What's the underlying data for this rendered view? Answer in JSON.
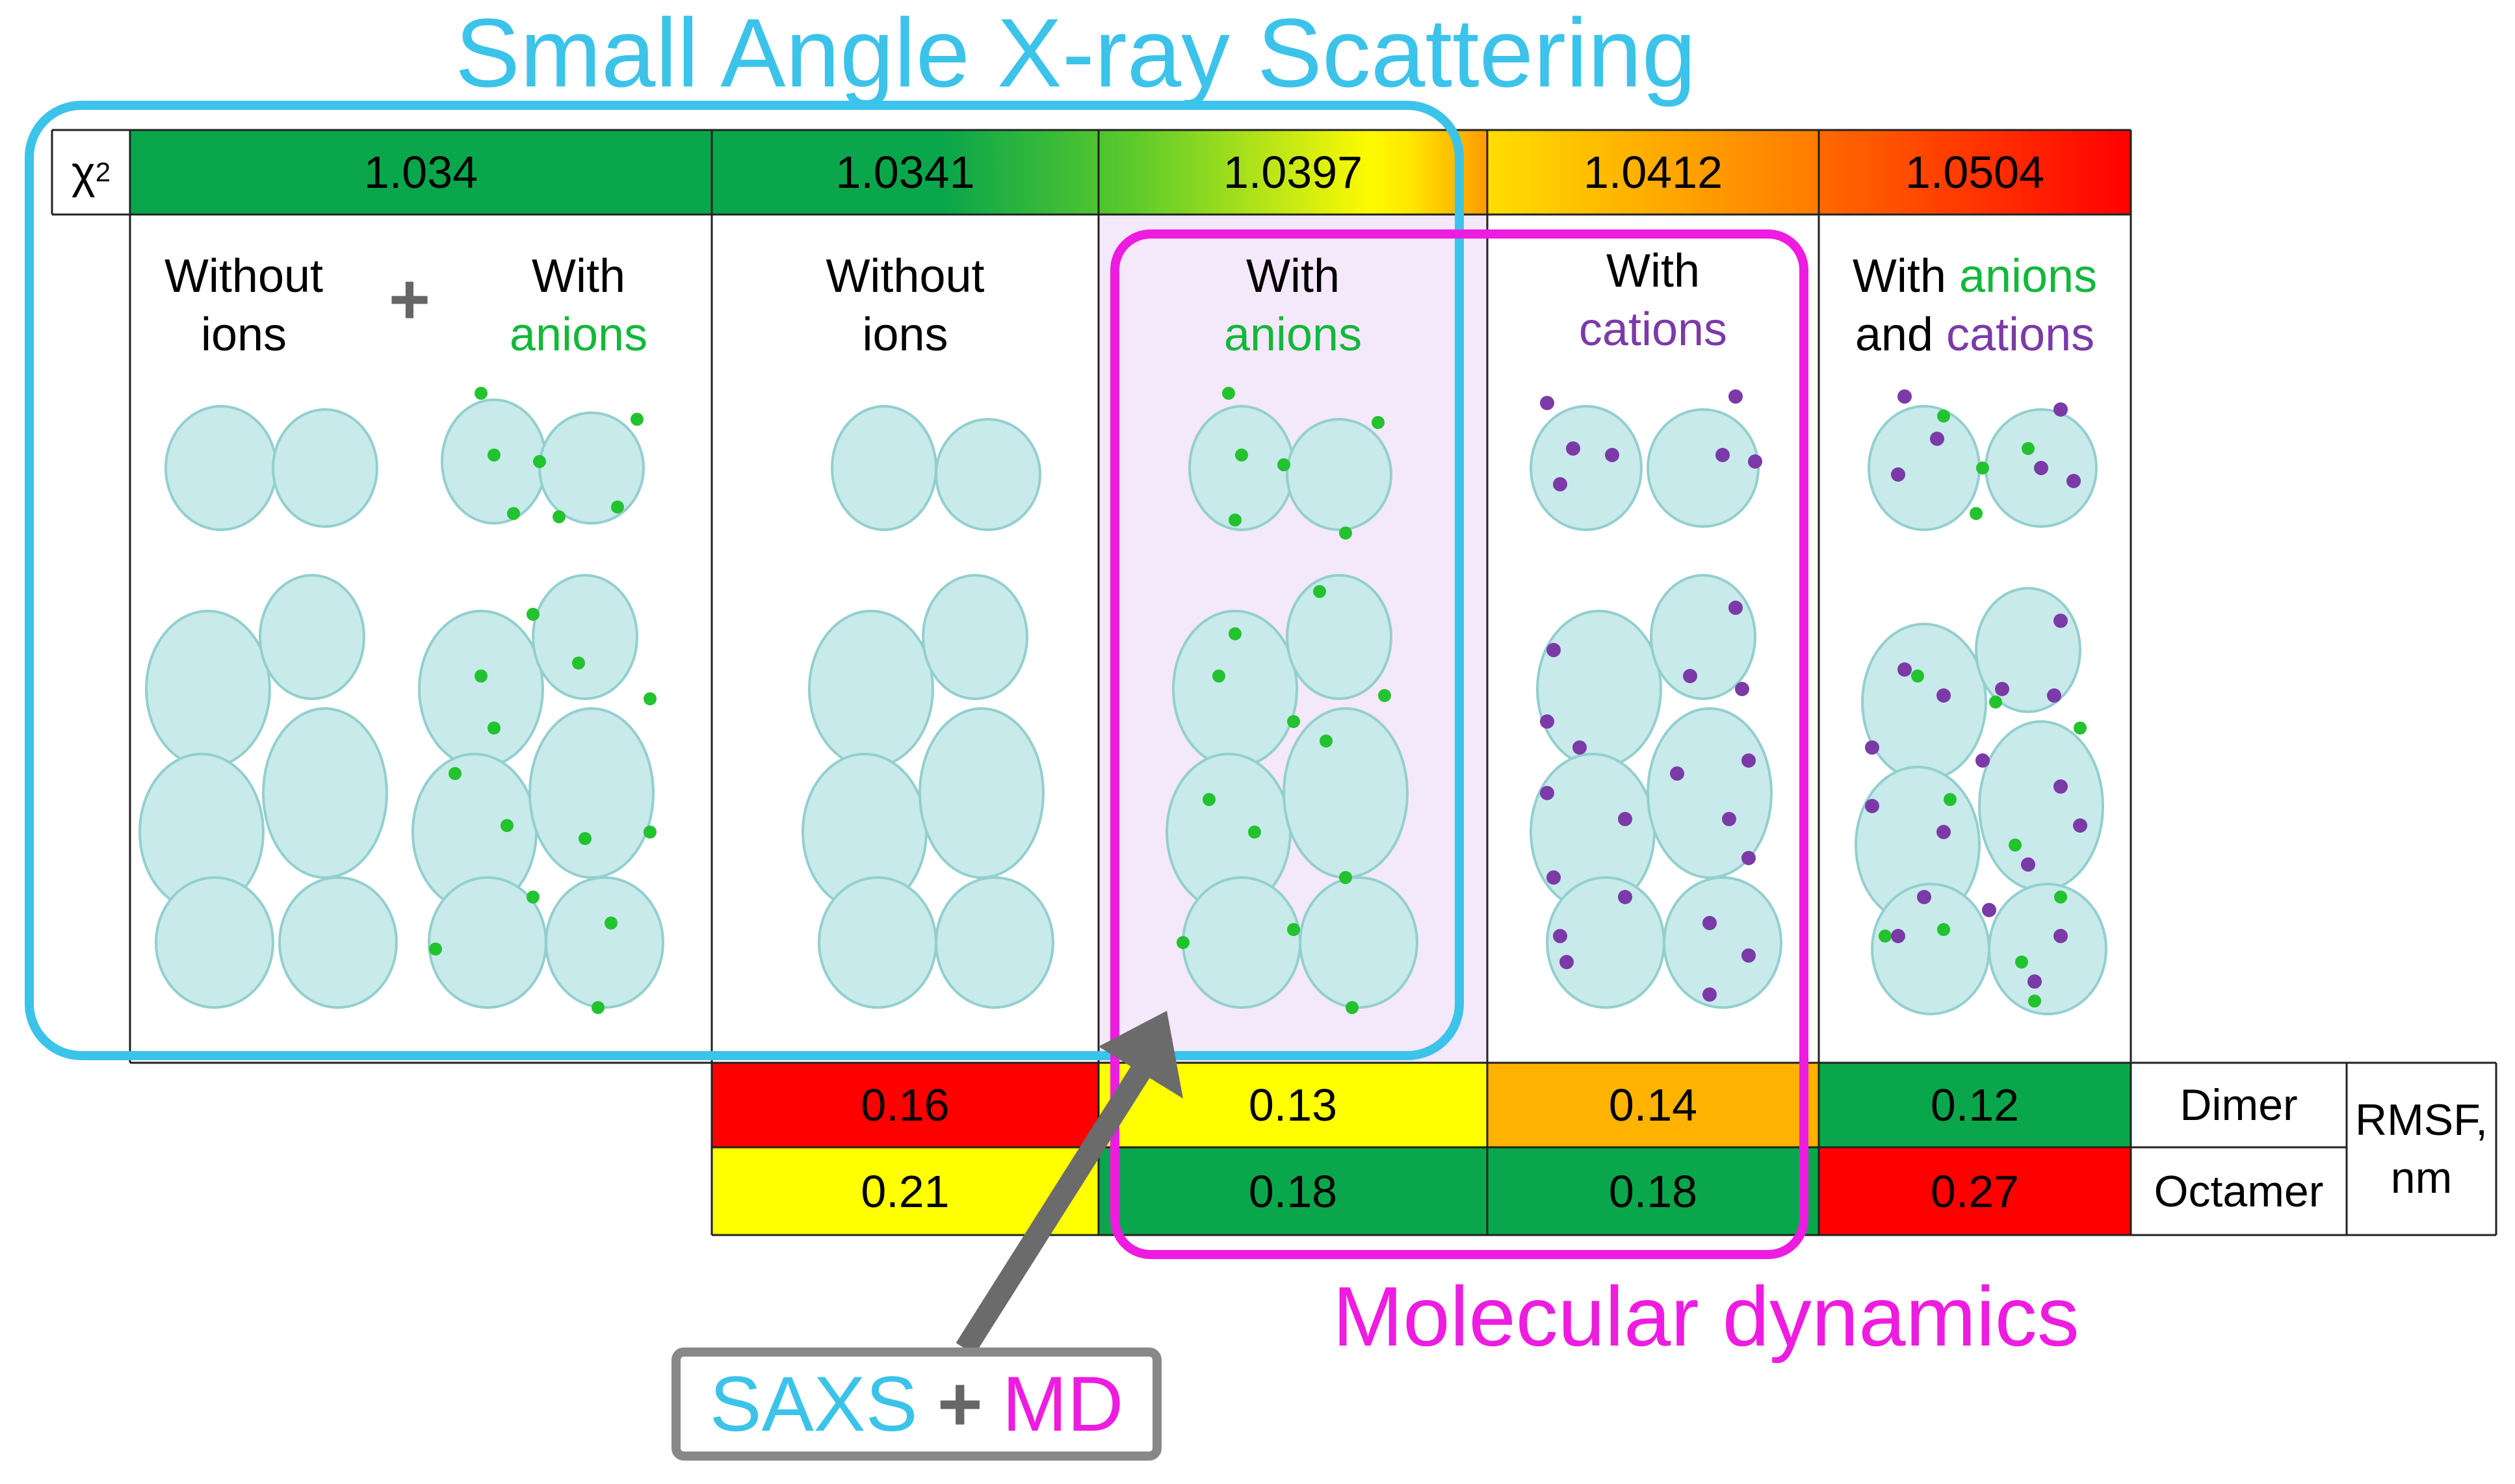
{
  "titles": {
    "saxs": "Small Angle X-ray Scattering",
    "md": "Molecular dynamics"
  },
  "chi_label": {
    "base": "χ",
    "sup": "2"
  },
  "chi_values": [
    "1.034",
    "1.0341",
    "1.0397",
    "1.0412",
    "1.0504"
  ],
  "columns": {
    "c1a": {
      "line1": "Without",
      "line2": "ions"
    },
    "plus": "+",
    "c1b": {
      "line1": "With",
      "line2": "anions"
    },
    "c2": {
      "line1": "Without",
      "line2": "ions"
    },
    "c3": {
      "line1": "With",
      "line2": "anions"
    },
    "c4": {
      "line1": "With",
      "line2": "cations"
    },
    "c5": {
      "line1a": "With",
      "line1b": "anions",
      "line2a": "and",
      "line2b": "cations"
    }
  },
  "rmsf": {
    "dimer_label": "Dimer",
    "octamer_label": "Octamer",
    "unit_label_1": "RMSF,",
    "unit_label_2": "nm",
    "dimer": [
      "0.16",
      "0.13",
      "0.14",
      "0.12"
    ],
    "octamer": [
      "0.21",
      "0.18",
      "0.18",
      "0.27"
    ]
  },
  "bottom_box": {
    "saxs": "SAXS",
    "plus": "+",
    "md": "MD"
  },
  "colors": {
    "green": "#0aa64b",
    "yellow": "#ffff00",
    "orange": "#ffb200",
    "red": "#ff0000",
    "saxs_blue": "#3cc3ea",
    "md_magenta": "#ee1ce0",
    "ion_green": "#22c32e",
    "ion_purple": "#7b3aa8",
    "protein": "#a7dddd"
  }
}
